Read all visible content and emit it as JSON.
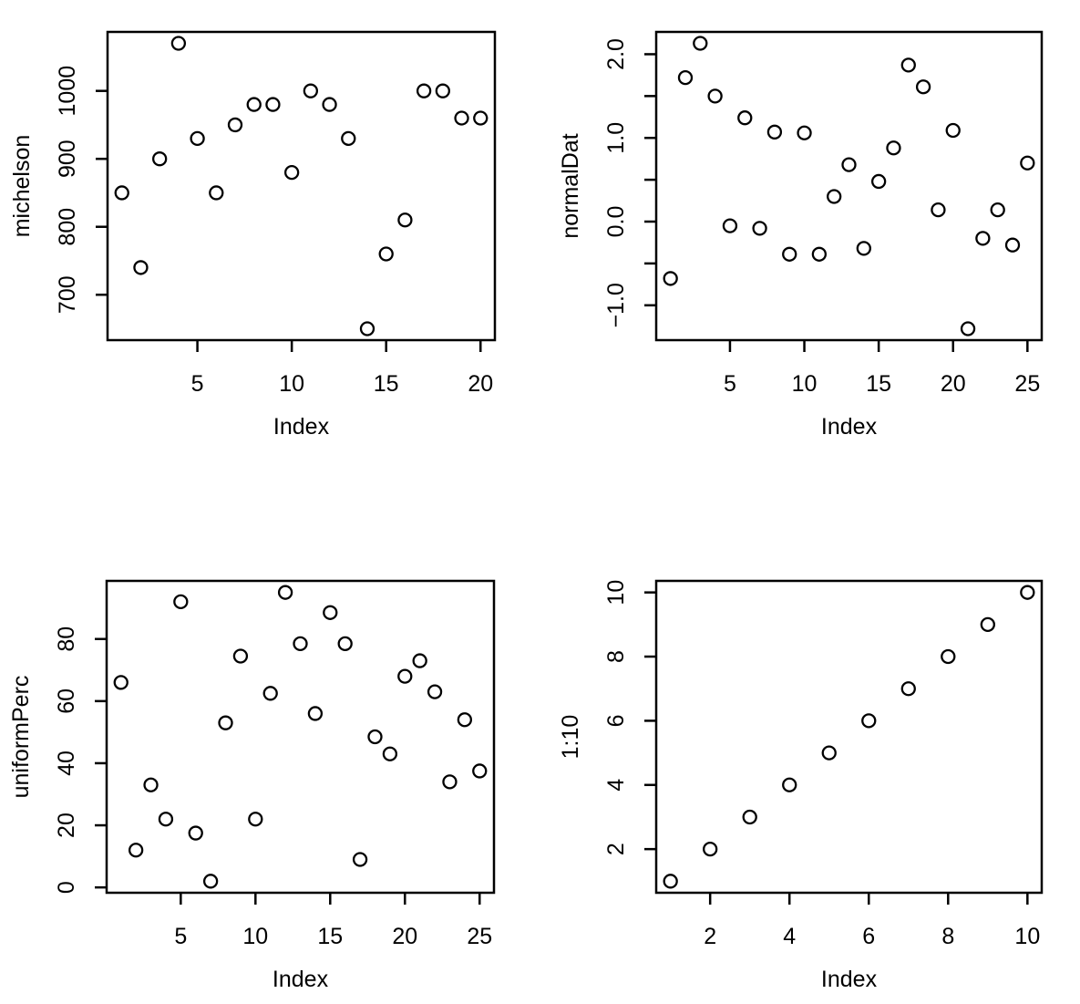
{
  "figure": {
    "background": "#ffffff",
    "axis_color": "#000000",
    "point_style": "open-circle"
  },
  "chart_data": [
    {
      "type": "scatter",
      "panel": "top-left",
      "xlabel": "Index",
      "ylabel": "michelson",
      "grid": false,
      "legend": null,
      "xlim": [
        1,
        20
      ],
      "ylim": [
        650,
        1070
      ],
      "x": [
        1,
        2,
        3,
        4,
        5,
        6,
        7,
        8,
        9,
        10,
        11,
        12,
        13,
        14,
        15,
        16,
        17,
        18,
        19,
        20
      ],
      "y": [
        850,
        740,
        900,
        1070,
        930,
        850,
        950,
        980,
        980,
        880,
        1000,
        980,
        930,
        650,
        760,
        810,
        1000,
        1000,
        960,
        960
      ],
      "xticks": [
        {
          "v": 5,
          "label": "5"
        },
        {
          "v": 10,
          "label": "10"
        },
        {
          "v": 15,
          "label": "15"
        },
        {
          "v": 20,
          "label": "20"
        }
      ],
      "yticks": [
        {
          "v": 700,
          "label": "700"
        },
        {
          "v": 800,
          "label": "800"
        },
        {
          "v": 900,
          "label": "900"
        },
        {
          "v": 1000,
          "label": "1000"
        }
      ]
    },
    {
      "type": "scatter",
      "panel": "top-right",
      "xlabel": "Index",
      "ylabel": "normalDat",
      "grid": false,
      "legend": null,
      "xlim": [
        1,
        25
      ],
      "ylim": [
        -1.28,
        2.13
      ],
      "x": [
        1,
        2,
        3,
        4,
        5,
        6,
        7,
        8,
        9,
        10,
        11,
        12,
        13,
        14,
        15,
        16,
        17,
        18,
        19,
        20,
        21,
        22,
        23,
        24,
        25
      ],
      "y": [
        -0.68,
        1.72,
        2.13,
        1.5,
        -0.05,
        1.24,
        -0.08,
        1.07,
        -0.39,
        1.06,
        -0.39,
        0.3,
        0.68,
        -0.32,
        0.48,
        0.88,
        1.87,
        1.61,
        0.14,
        1.09,
        -1.28,
        -0.2,
        0.14,
        -0.28,
        0.7
      ],
      "xticks": [
        {
          "v": 5,
          "label": "5"
        },
        {
          "v": 10,
          "label": "10"
        },
        {
          "v": 15,
          "label": "15"
        },
        {
          "v": 20,
          "label": "20"
        },
        {
          "v": 25,
          "label": "25"
        }
      ],
      "yticks": [
        {
          "v": -1.0,
          "label": "−1.0"
        },
        {
          "v": -0.5,
          "label": ""
        },
        {
          "v": 0.0,
          "label": "0.0"
        },
        {
          "v": 0.5,
          "label": ""
        },
        {
          "v": 1.0,
          "label": "1.0"
        },
        {
          "v": 1.5,
          "label": ""
        },
        {
          "v": 2.0,
          "label": "2.0"
        }
      ]
    },
    {
      "type": "scatter",
      "panel": "bottom-left",
      "xlabel": "Index",
      "ylabel": "uniformPerc",
      "grid": false,
      "legend": null,
      "xlim": [
        1,
        25
      ],
      "ylim": [
        2,
        95
      ],
      "x": [
        1,
        2,
        3,
        4,
        5,
        6,
        7,
        8,
        9,
        10,
        11,
        12,
        13,
        14,
        15,
        16,
        17,
        18,
        19,
        20,
        21,
        22,
        23,
        24,
        25
      ],
      "y": [
        66,
        12,
        33,
        22,
        92,
        17.5,
        2,
        53,
        74.5,
        22,
        62.5,
        95,
        78.5,
        56,
        88.5,
        78.5,
        9,
        48.5,
        43,
        68,
        73,
        63,
        34,
        54,
        37.5
      ],
      "xticks": [
        {
          "v": 5,
          "label": "5"
        },
        {
          "v": 10,
          "label": "10"
        },
        {
          "v": 15,
          "label": "15"
        },
        {
          "v": 20,
          "label": "20"
        },
        {
          "v": 25,
          "label": "25"
        }
      ],
      "yticks": [
        {
          "v": 0,
          "label": "0"
        },
        {
          "v": 20,
          "label": "20"
        },
        {
          "v": 40,
          "label": "40"
        },
        {
          "v": 60,
          "label": "60"
        },
        {
          "v": 80,
          "label": "80"
        }
      ]
    },
    {
      "type": "scatter",
      "panel": "bottom-right",
      "xlabel": "Index",
      "ylabel": "1:10",
      "grid": false,
      "legend": null,
      "xlim": [
        1,
        10
      ],
      "ylim": [
        1,
        10
      ],
      "x": [
        1,
        2,
        3,
        4,
        5,
        6,
        7,
        8,
        9,
        10
      ],
      "y": [
        1,
        2,
        3,
        4,
        5,
        6,
        7,
        8,
        9,
        10
      ],
      "xticks": [
        {
          "v": 2,
          "label": "2"
        },
        {
          "v": 4,
          "label": "4"
        },
        {
          "v": 6,
          "label": "6"
        },
        {
          "v": 8,
          "label": "8"
        },
        {
          "v": 10,
          "label": "10"
        }
      ],
      "yticks": [
        {
          "v": 2,
          "label": "2"
        },
        {
          "v": 4,
          "label": "4"
        },
        {
          "v": 6,
          "label": "6"
        },
        {
          "v": 8,
          "label": "8"
        },
        {
          "v": 10,
          "label": "10"
        }
      ]
    }
  ]
}
